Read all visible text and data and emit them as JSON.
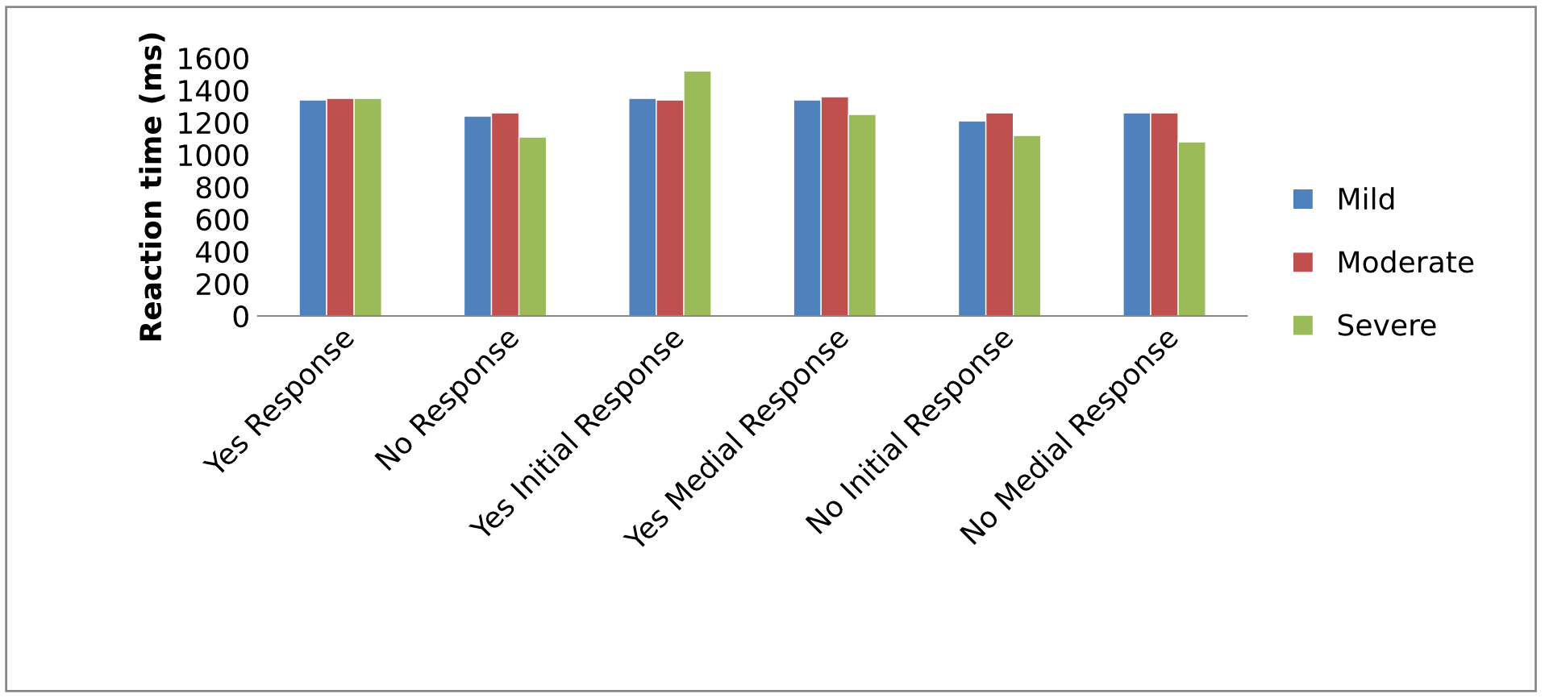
{
  "chart_data": {
    "type": "bar",
    "ylabel": "Reaction time (ms)",
    "categories": [
      "Yes Response",
      "No Response",
      "Yes Initial Response",
      "Yes Medial Response",
      "No Initial Response",
      "No Medial Response"
    ],
    "series": [
      {
        "name": "Mild",
        "color": "#4f81bd",
        "values": [
          1340,
          1240,
          1350,
          1340,
          1210,
          1260
        ]
      },
      {
        "name": "Moderate",
        "color": "#c0504d",
        "values": [
          1350,
          1260,
          1340,
          1360,
          1260,
          1260
        ]
      },
      {
        "name": "Severe",
        "color": "#9bbb59",
        "values": [
          1350,
          1110,
          1520,
          1250,
          1120,
          1080
        ]
      }
    ],
    "ylim": [
      0,
      1600
    ],
    "yticks": [
      0,
      200,
      400,
      600,
      800,
      1000,
      1200,
      1400,
      1600
    ],
    "grid": false,
    "legend": "right"
  }
}
